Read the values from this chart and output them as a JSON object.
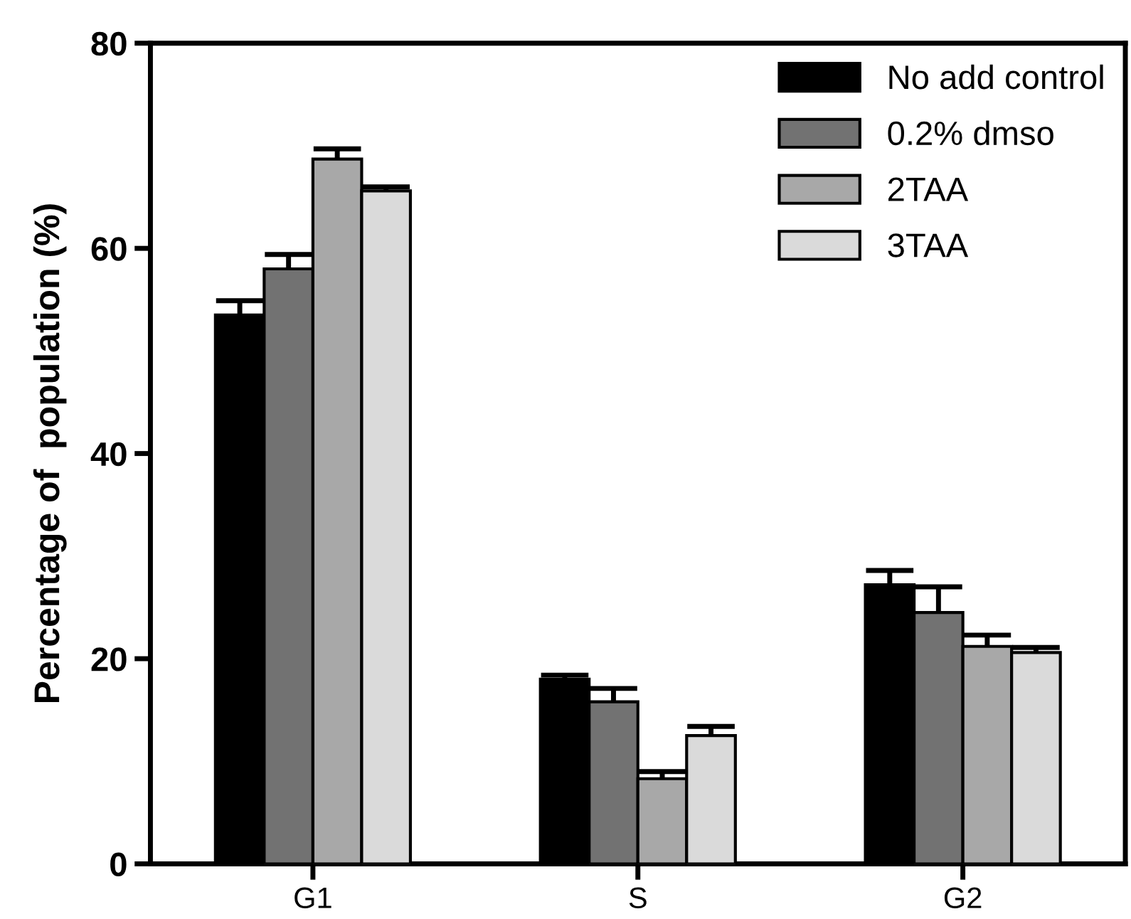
{
  "chart_data": {
    "type": "bar",
    "ylabel": "Percentage of  population (%)",
    "categories": [
      "G1",
      "S",
      "G2"
    ],
    "series": [
      {
        "name": "No add control",
        "color": "#000000",
        "values": [
          53.5,
          18.0,
          27.2
        ],
        "errors": [
          1.4,
          0.4,
          1.4
        ]
      },
      {
        "name": "0.2% dmso",
        "color": "#727272",
        "values": [
          58.0,
          15.8,
          24.5
        ],
        "errors": [
          1.4,
          1.3,
          2.5
        ]
      },
      {
        "name": "2TAA",
        "color": "#a8a8a8",
        "values": [
          68.7,
          8.3,
          21.2
        ],
        "errors": [
          1.0,
          0.7,
          1.1
        ]
      },
      {
        "name": "3TAA",
        "color": "#dadada",
        "values": [
          65.6,
          12.5,
          20.6
        ],
        "errors": [
          0.4,
          0.9,
          0.5
        ]
      }
    ],
    "ylim": [
      0,
      80
    ],
    "yticks": [
      0,
      20,
      40,
      60,
      80
    ],
    "grid": false,
    "legend": "top right"
  }
}
